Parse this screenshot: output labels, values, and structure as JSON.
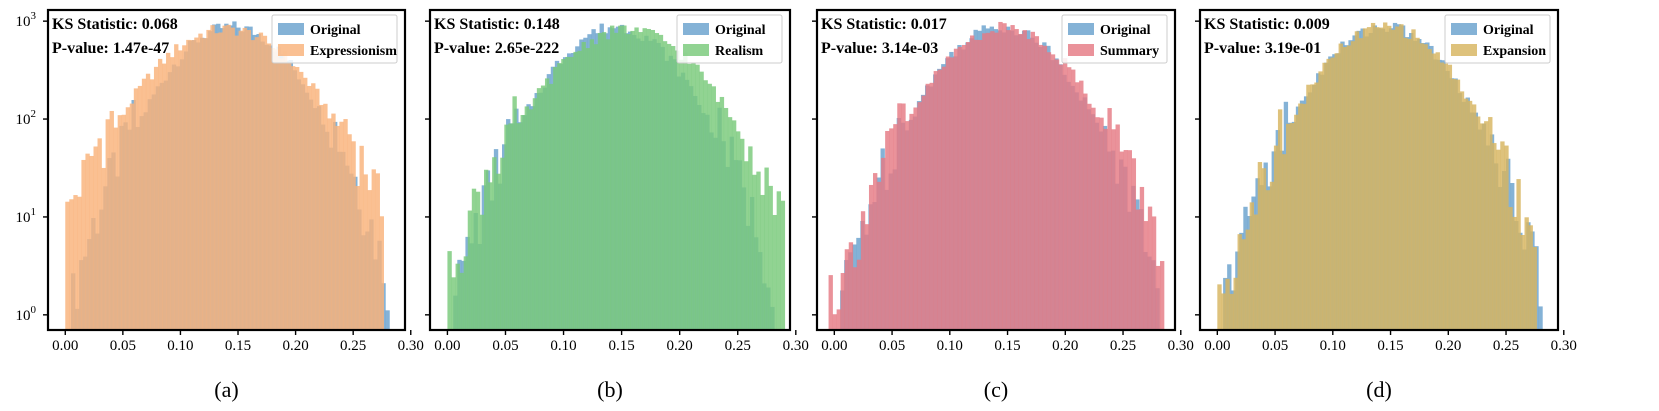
{
  "chart_data": [
    {
      "type": "histogram",
      "panel_label": "(a)",
      "y_scale": "log",
      "xlim": [
        -0.015,
        0.295
      ],
      "ylim": [
        0.7,
        1300
      ],
      "x_ticks": [
        0.0,
        0.05,
        0.1,
        0.15,
        0.2,
        0.25,
        0.3
      ],
      "x_tick_labels": [
        "0.00",
        "0.05",
        "0.10",
        "0.15",
        "0.20",
        "0.25",
        "0.30"
      ],
      "y_ticks": [
        1,
        10,
        100,
        1000
      ],
      "y_tick_labels": [
        {
          "base": "10",
          "exp": "0"
        },
        {
          "base": "10",
          "exp": "1"
        },
        {
          "base": "10",
          "exp": "2"
        },
        {
          "base": "10",
          "exp": "3"
        }
      ],
      "annotations": [
        "KS Statistic: 0.068",
        "P-value: 1.47e-47"
      ],
      "legend_position": "upper-right",
      "series": [
        {
          "name": "Original",
          "color": "#6fa4cf",
          "opacity": 0.85,
          "peak_x": 0.145,
          "peak_y": 880,
          "sigma": 0.038,
          "range": [
            0.005,
            0.28
          ]
        },
        {
          "name": "Expressionism",
          "color": "#f9b27a",
          "opacity": 0.82,
          "peak_x": 0.14,
          "peak_y": 830,
          "sigma": 0.045,
          "range": [
            0.0,
            0.275
          ]
        }
      ]
    },
    {
      "type": "histogram",
      "panel_label": "(b)",
      "y_scale": "log",
      "xlim": [
        -0.015,
        0.295
      ],
      "ylim": [
        0.7,
        1300
      ],
      "x_ticks": [
        0.0,
        0.05,
        0.1,
        0.15,
        0.2,
        0.25,
        0.3
      ],
      "x_tick_labels": [
        "0.00",
        "0.05",
        "0.10",
        "0.15",
        "0.20",
        "0.25",
        "0.30"
      ],
      "annotations": [
        "KS Statistic: 0.148",
        "P-value: 2.65e-222"
      ],
      "legend_position": "upper-right",
      "series": [
        {
          "name": "Original",
          "color": "#6fa4cf",
          "opacity": 0.85,
          "peak_x": 0.145,
          "peak_y": 880,
          "sigma": 0.038,
          "range": [
            0.005,
            0.28
          ]
        },
        {
          "name": "Realism",
          "color": "#79c97a",
          "opacity": 0.82,
          "peak_x": 0.155,
          "peak_y": 820,
          "sigma": 0.044,
          "range": [
            0.0,
            0.29
          ]
        }
      ]
    },
    {
      "type": "histogram",
      "panel_label": "(c)",
      "y_scale": "log",
      "xlim": [
        -0.015,
        0.295
      ],
      "ylim": [
        0.7,
        1300
      ],
      "x_ticks": [
        0.0,
        0.05,
        0.1,
        0.15,
        0.2,
        0.25,
        0.3
      ],
      "x_tick_labels": [
        "0.00",
        "0.05",
        "0.10",
        "0.15",
        "0.20",
        "0.25",
        "0.30"
      ],
      "annotations": [
        "KS Statistic: 0.017",
        "P-value: 3.14e-03"
      ],
      "legend_position": "upper-right",
      "series": [
        {
          "name": "Original",
          "color": "#6fa4cf",
          "opacity": 0.85,
          "peak_x": 0.145,
          "peak_y": 880,
          "sigma": 0.038,
          "range": [
            0.005,
            0.28
          ]
        },
        {
          "name": "Summary",
          "color": "#e57a84",
          "opacity": 0.82,
          "peak_x": 0.148,
          "peak_y": 860,
          "sigma": 0.04,
          "range": [
            -0.005,
            0.285
          ]
        }
      ]
    },
    {
      "type": "histogram",
      "panel_label": "(d)",
      "y_scale": "log",
      "xlim": [
        -0.015,
        0.295
      ],
      "ylim": [
        0.7,
        1300
      ],
      "x_ticks": [
        0.0,
        0.05,
        0.1,
        0.15,
        0.2,
        0.25,
        0.3
      ],
      "x_tick_labels": [
        "0.00",
        "0.05",
        "0.10",
        "0.15",
        "0.20",
        "0.25",
        "0.30"
      ],
      "annotations": [
        "KS Statistic: 0.009",
        "P-value: 3.19e-01"
      ],
      "legend_position": "upper-right",
      "series": [
        {
          "name": "Original",
          "color": "#6fa4cf",
          "opacity": 0.85,
          "peak_x": 0.145,
          "peak_y": 880,
          "sigma": 0.038,
          "range": [
            0.005,
            0.28
          ]
        },
        {
          "name": "Expansion",
          "color": "#d7b45f",
          "opacity": 0.82,
          "peak_x": 0.146,
          "peak_y": 870,
          "sigma": 0.039,
          "range": [
            0.0,
            0.275
          ]
        }
      ]
    }
  ]
}
